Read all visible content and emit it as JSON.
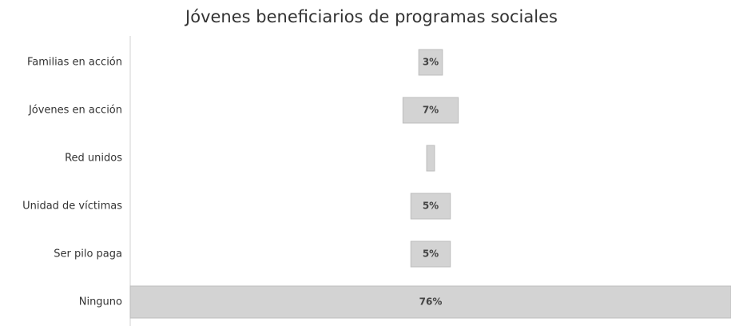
{
  "chart_data": {
    "type": "funnel",
    "title": "Jóvenes beneficiarios de programas sociales",
    "categories": [
      "Familias en acción",
      "Jóvenes en acción",
      "Red unidos",
      "Unidad de víctimas",
      "Ser pilo paga",
      "Ninguno"
    ],
    "values": [
      3,
      7,
      1,
      5,
      5,
      76
    ],
    "value_labels": [
      "3%",
      "7%",
      null,
      "5%",
      "5%",
      "76%"
    ],
    "color": "#d3d3d3"
  }
}
